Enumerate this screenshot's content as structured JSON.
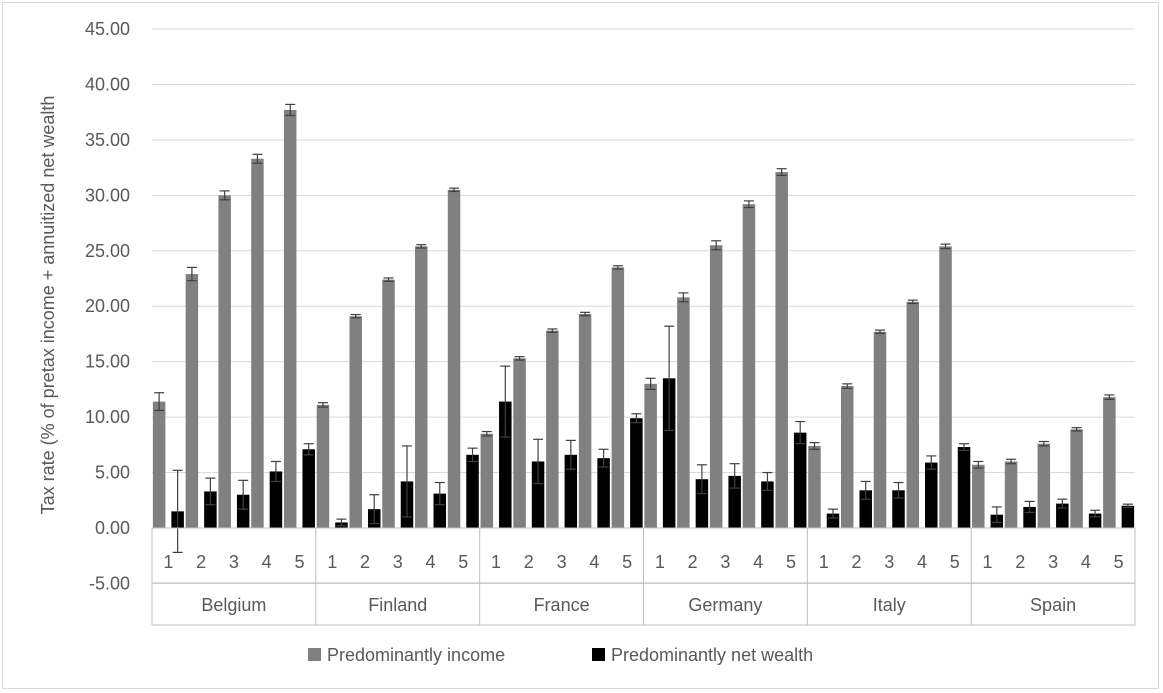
{
  "chart_data": {
    "type": "bar",
    "ylabel": "Tax rate (% of pretax income + annuitized net wealth",
    "ylim": [
      -5,
      45
    ],
    "yticks": [
      "45.00",
      "40.00",
      "35.00",
      "30.00",
      "25.00",
      "20.00",
      "15.00",
      "10.00",
      "5.00",
      "0.00",
      "-5.00"
    ],
    "ytick_values": [
      45,
      40,
      35,
      30,
      25,
      20,
      15,
      10,
      5,
      0,
      -5
    ],
    "grid": true,
    "legend_position": "bottom",
    "groups": [
      "Belgium",
      "Finland",
      "France",
      "Germany",
      "Italy",
      "Spain"
    ],
    "categories": [
      "1",
      "2",
      "3",
      "4",
      "5"
    ],
    "series": [
      {
        "name": "Predominantly income",
        "color": "#808080",
        "values": [
          [
            11.4,
            22.9,
            30.0,
            33.3,
            37.7
          ],
          [
            11.1,
            19.1,
            22.4,
            25.4,
            30.5
          ],
          [
            8.5,
            15.3,
            17.8,
            19.3,
            23.5
          ],
          [
            13.0,
            20.8,
            25.5,
            29.2,
            32.1
          ],
          [
            7.4,
            12.8,
            17.7,
            20.4,
            25.4
          ],
          [
            5.7,
            6.0,
            7.6,
            8.9,
            11.8
          ]
        ],
        "errors": [
          [
            0.8,
            0.6,
            0.4,
            0.4,
            0.5
          ],
          [
            0.2,
            0.15,
            0.15,
            0.15,
            0.15
          ],
          [
            0.2,
            0.15,
            0.15,
            0.15,
            0.15
          ],
          [
            0.5,
            0.4,
            0.4,
            0.3,
            0.3
          ],
          [
            0.3,
            0.2,
            0.15,
            0.15,
            0.2
          ],
          [
            0.3,
            0.2,
            0.2,
            0.15,
            0.2
          ]
        ]
      },
      {
        "name": "Predominantly net wealth",
        "color": "#000000",
        "values": [
          [
            1.5,
            3.3,
            3.0,
            5.1,
            7.1
          ],
          [
            0.5,
            1.7,
            4.2,
            3.1,
            6.6
          ],
          [
            11.4,
            6.0,
            6.6,
            6.3,
            9.9
          ],
          [
            13.5,
            4.4,
            4.7,
            4.2,
            8.6
          ],
          [
            1.3,
            3.4,
            3.4,
            5.9,
            7.3
          ],
          [
            1.2,
            1.9,
            2.2,
            1.3,
            2.0
          ]
        ],
        "errors": [
          [
            3.7,
            1.2,
            1.3,
            0.9,
            0.5
          ],
          [
            0.3,
            1.3,
            3.2,
            1.0,
            0.6
          ],
          [
            3.2,
            2.0,
            1.3,
            0.8,
            0.4
          ],
          [
            4.7,
            1.3,
            1.1,
            0.8,
            1.0
          ],
          [
            0.4,
            0.8,
            0.7,
            0.6,
            0.3
          ],
          [
            0.7,
            0.5,
            0.4,
            0.3,
            0.15
          ]
        ]
      }
    ]
  }
}
